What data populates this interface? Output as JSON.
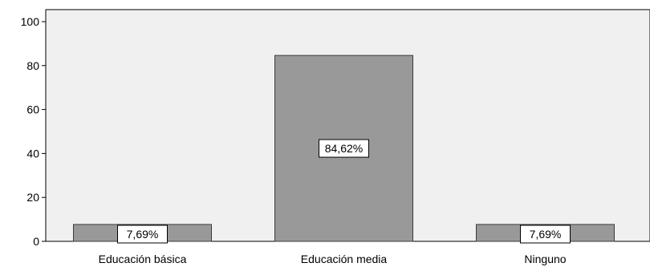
{
  "chart_data": {
    "type": "bar",
    "title": "",
    "xlabel": "",
    "ylabel": "",
    "categories": [
      "Educación básica",
      "Educación media",
      "Ninguno"
    ],
    "values": [
      7.69,
      84.62,
      7.69
    ],
    "data_labels": [
      "7,69%",
      "84,62%",
      "7,69%"
    ],
    "ylim": [
      0,
      100
    ],
    "yticks": [
      0,
      20,
      40,
      60,
      80,
      100
    ],
    "ytick_labels": [
      "0",
      "20",
      "40",
      "60",
      "80",
      "100"
    ],
    "grid": false,
    "legend": "none",
    "colors": {
      "plot_background": "#f0f0f0",
      "bar_fill": "#999999",
      "bar_stroke": "#3a3a3a",
      "axis": "#000000",
      "label_box": "#ffffff"
    }
  }
}
